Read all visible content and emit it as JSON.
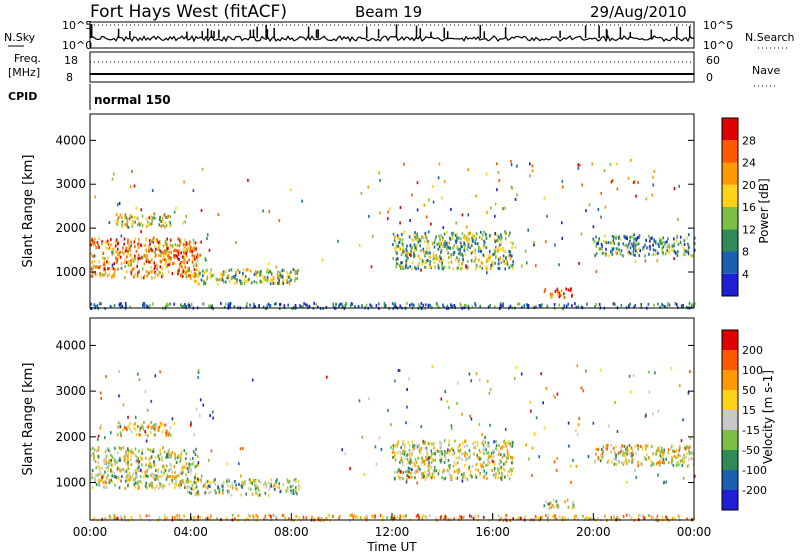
{
  "header": {
    "title": "Fort Hays West (fitACF)",
    "beam": "Beam 19",
    "date": "29/Aug/2010"
  },
  "summary": {
    "nsky_label": "N.Sky",
    "nsearch_label": "N.Search",
    "noise_ticks": [
      "10^5",
      "10^0"
    ],
    "freq_label": "Freq.",
    "freq_unit": "[MHz]",
    "freq_ticks": [
      "18",
      "8"
    ],
    "nave_label": "Nave",
    "nave_ticks": [
      "60",
      "0"
    ],
    "cpid_label": "CPID",
    "cpid_value": "normal 150"
  },
  "chart_data": [
    {
      "type": "heatmap",
      "panel": "power",
      "ylabel": "Slant Range [km]",
      "yticks": [
        "1000",
        "2000",
        "3000",
        "4000"
      ],
      "ylim": [
        180,
        4600
      ],
      "xlim": [
        0,
        24
      ],
      "colorbar_label": "Power [dB]",
      "colorbar_ticks": [
        "4",
        "8",
        "12",
        "16",
        "20",
        "24",
        "28"
      ],
      "colorbar_range": [
        0,
        32
      ],
      "colors": [
        "#1f1fd6",
        "#1a5fb4",
        "#2e8b57",
        "#7bc043",
        "#ffd21a",
        "#ff9a00",
        "#ff5a00",
        "#e00000"
      ],
      "echo_regions": [
        {
          "t0": 0.0,
          "t1": 4.3,
          "r0": 900,
          "r1": 1800,
          "level": 0.72
        },
        {
          "t0": 1.0,
          "t1": 3.2,
          "r0": 2050,
          "r1": 2350,
          "level": 0.55
        },
        {
          "t0": 3.8,
          "t1": 8.3,
          "r0": 750,
          "r1": 1100,
          "level": 0.45
        },
        {
          "t0": 12.0,
          "t1": 16.8,
          "r0": 1100,
          "r1": 1950,
          "level": 0.4
        },
        {
          "t0": 18.0,
          "t1": 19.2,
          "r0": 450,
          "r1": 650,
          "level": 0.85
        },
        {
          "t0": 20.0,
          "t1": 24.0,
          "r0": 1400,
          "r1": 1850,
          "level": 0.3
        },
        {
          "t0": 0.0,
          "t1": 24.0,
          "r0": 200,
          "r1": 320,
          "level": 0.2
        }
      ]
    },
    {
      "type": "heatmap",
      "panel": "velocity",
      "ylabel": "Slant Range [km]",
      "yticks": [
        "1000",
        "2000",
        "3000",
        "4000"
      ],
      "ylim": [
        180,
        4600
      ],
      "xlim": [
        0,
        24
      ],
      "xticks": [
        "00:00",
        "04:00",
        "08:00",
        "12:00",
        "16:00",
        "20:00",
        "00:00"
      ],
      "xlabel": "Time UT",
      "colorbar_label": "Velocity [m s-1]",
      "colorbar_ticks": [
        "200",
        "100",
        "50",
        "15",
        "-15",
        "-50",
        "-100",
        "-200"
      ],
      "colorbar_range": [
        -250,
        250
      ],
      "colors": [
        "#1f1fd6",
        "#1a5fb4",
        "#2e8b57",
        "#7bc043",
        "#c8c8c8",
        "#ffd21a",
        "#ff9a00",
        "#ff5a00",
        "#e00000"
      ],
      "echo_regions": [
        {
          "t0": 0.0,
          "t1": 4.3,
          "r0": 900,
          "r1": 1800,
          "level": 0.5
        },
        {
          "t0": 1.0,
          "t1": 3.2,
          "r0": 2050,
          "r1": 2350,
          "level": 0.6
        },
        {
          "t0": 3.8,
          "t1": 8.3,
          "r0": 750,
          "r1": 1100,
          "level": 0.45
        },
        {
          "t0": 12.0,
          "t1": 16.8,
          "r0": 1100,
          "r1": 1950,
          "level": 0.5
        },
        {
          "t0": 18.0,
          "t1": 19.2,
          "r0": 450,
          "r1": 650,
          "level": 0.5
        },
        {
          "t0": 20.0,
          "t1": 24.0,
          "r0": 1400,
          "r1": 1850,
          "level": 0.55
        },
        {
          "t0": 0.0,
          "t1": 24.0,
          "r0": 200,
          "r1": 320,
          "level": 0.68
        }
      ]
    }
  ]
}
